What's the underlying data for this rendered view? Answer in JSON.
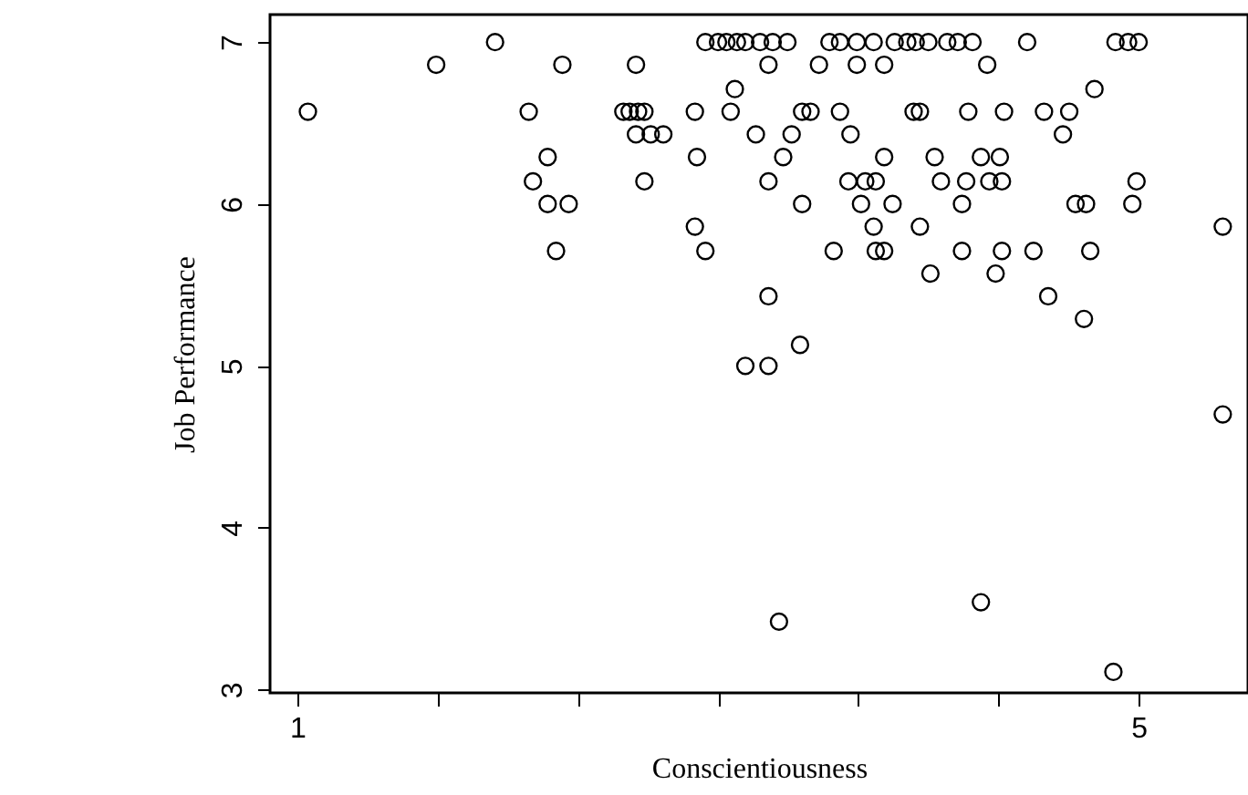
{
  "chart_data": {
    "type": "scatter",
    "xlabel": "Conscientiousness",
    "ylabel": "Job Performance",
    "color": "#000000",
    "marker": "circle",
    "xlim": [
      0.87,
      5.52
    ],
    "ylim": [
      2.98,
      7.17
    ],
    "xticks": [
      {
        "value": 1,
        "label": "1"
      },
      {
        "value": 1.667,
        "label": null
      },
      {
        "value": 2.333,
        "label": null
      },
      {
        "value": 3,
        "label": null
      },
      {
        "value": 3.667,
        "label": null
      },
      {
        "value": 4.333,
        "label": null
      },
      {
        "value": 5,
        "label": "5"
      }
    ],
    "yticks": [
      3,
      4,
      5,
      6,
      7
    ],
    "x": [
      1.05,
      1.66,
      1.94,
      2.26,
      2.61,
      2.1,
      2.19,
      2.12,
      2.19,
      2.29,
      2.23,
      2.55,
      2.58,
      2.62,
      2.65,
      2.61,
      2.68,
      2.74,
      2.65,
      2.89,
      2.9,
      2.89,
      2.94,
      3.08,
      3.06,
      2.94,
      3.0,
      3.04,
      3.09,
      3.13,
      3.24,
      3.18,
      3.24,
      3.24,
      3.13,
      3.24,
      3.2,
      3.26,
      3.33,
      3.53,
      3.58,
      3.66,
      3.74,
      3.84,
      3.9,
      3.94,
      4.0,
      4.09,
      4.14,
      4.21,
      4.47,
      4.89,
      4.95,
      5.0,
      3.48,
      3.66,
      3.79,
      4.28,
      4.79,
      3.4,
      3.44,
      3.58,
      3.93,
      3.96,
      4.19,
      4.36,
      4.55,
      4.67,
      3.35,
      3.63,
      4.64,
      3.31,
      3.79,
      4.03,
      4.25,
      4.34,
      3.62,
      3.7,
      3.75,
      4.06,
      4.18,
      4.29,
      4.35,
      4.99,
      3.4,
      3.68,
      3.83,
      4.16,
      4.7,
      4.75,
      4.97,
      3.74,
      3.96,
      5.4,
      3.55,
      3.75,
      3.79,
      4.16,
      4.35,
      4.5,
      4.77,
      4.01,
      4.32,
      4.57,
      4.74,
      3.39,
      5.4,
      3.29,
      4.25,
      4.88
    ],
    "values": [
      6.57,
      6.86,
      7,
      6.86,
      6.86,
      6.57,
      6.29,
      6.14,
      6,
      6,
      5.71,
      6.57,
      6.57,
      6.57,
      6.57,
      6.43,
      6.43,
      6.43,
      6.14,
      6.57,
      6.29,
      5.86,
      5.71,
      6.71,
      6.57,
      7,
      7,
      7,
      7,
      7,
      6.86,
      6.43,
      6.14,
      5.43,
      5,
      5,
      7,
      7,
      7,
      7,
      7,
      7,
      7,
      7,
      7,
      7,
      7,
      7,
      7,
      7,
      7,
      7,
      7,
      7,
      6.86,
      6.86,
      6.86,
      6.86,
      6.71,
      6.57,
      6.57,
      6.57,
      6.57,
      6.57,
      6.57,
      6.57,
      6.57,
      6.57,
      6.43,
      6.43,
      6.43,
      6.29,
      6.29,
      6.29,
      6.29,
      6.29,
      6.14,
      6.14,
      6.14,
      6.14,
      6.14,
      6.14,
      6.14,
      6.14,
      6,
      6,
      6,
      6,
      6,
      6,
      6,
      5.86,
      5.86,
      5.86,
      5.71,
      5.71,
      5.71,
      5.71,
      5.71,
      5.71,
      5.71,
      5.57,
      5.57,
      5.43,
      5.29,
      5.13,
      4.7,
      3.42,
      3.54,
      3.11
    ]
  }
}
